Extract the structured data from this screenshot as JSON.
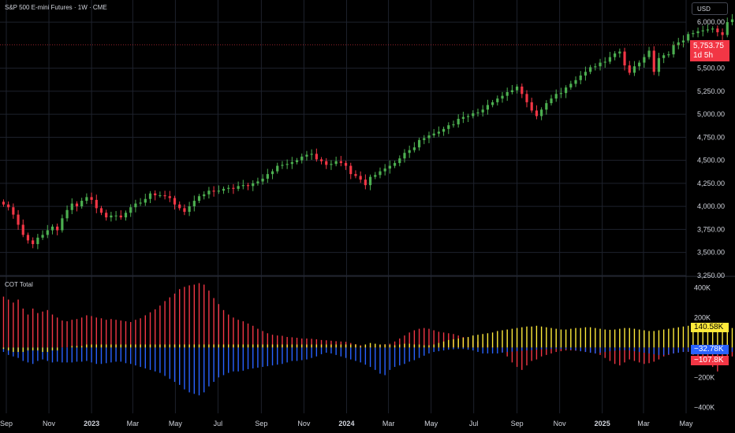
{
  "header": {
    "title": "S&P 500 E-mini Futures · 1W · CME"
  },
  "currency_button": {
    "label": "USD"
  },
  "last_price": {
    "value": "5,753.75",
    "countdown": "1d 5h"
  },
  "indicator": {
    "title": "COT Total",
    "tags": [
      {
        "value": "140.58K",
        "color": "#ffeb3b",
        "text_color": "#000000"
      },
      {
        "value": "−32.78K",
        "color": "#2962ff",
        "text_color": "#ffffff"
      },
      {
        "value": "−107.8K",
        "color": "#f23645",
        "text_color": "#ffffff"
      }
    ]
  },
  "colors": {
    "up": "#4caf50",
    "down": "#f23645",
    "yellow": "#ffeb3b",
    "blue": "#2962ff",
    "red": "#f23645",
    "grid": "#1e222d",
    "text": "#d1d4dc"
  },
  "chart_data": [
    {
      "type": "candlestick",
      "title": "S&P 500 E-mini Futures · 1W · CME",
      "y_axis_ticks": [
        "3,250.00",
        "3,500.00",
        "3,750.00",
        "4,000.00",
        "4,250.00",
        "4,500.00",
        "4,750.00",
        "5,000.00",
        "5,250.00",
        "5,500.00",
        "6,000.00"
      ],
      "ylim": [
        3240,
        6240
      ],
      "x_axis_ticks": [
        "Sep",
        "Nov",
        "2023",
        "Mar",
        "May",
        "Jul",
        "Sep",
        "Nov",
        "2024",
        "Mar",
        "May",
        "Jul",
        "Sep",
        "Nov",
        "2025",
        "Mar",
        "May"
      ],
      "x_range": [
        "2022-09-01",
        "2025-05-01"
      ],
      "start_date": "2022-08-28",
      "step_days": 7,
      "close": [
        4020,
        3990,
        3910,
        3800,
        3690,
        3630,
        3590,
        3660,
        3690,
        3740,
        3780,
        3740,
        3870,
        3960,
        4030,
        4000,
        4060,
        4100,
        4070,
        3980,
        3930,
        3880,
        3900,
        3900,
        3880,
        3930,
        3990,
        4030,
        4040,
        4080,
        4140,
        4120,
        4120,
        4110,
        4090,
        4020,
        3980,
        3940,
        4000,
        4060,
        4110,
        4130,
        4170,
        4160,
        4170,
        4190,
        4200,
        4190,
        4220,
        4230,
        4220,
        4250,
        4270,
        4300,
        4350,
        4380,
        4440,
        4450,
        4460,
        4480,
        4500,
        4540,
        4560,
        4570,
        4510,
        4490,
        4450,
        4460,
        4490,
        4470,
        4440,
        4350,
        4330,
        4290,
        4230,
        4320,
        4340,
        4380,
        4410,
        4440,
        4470,
        4520,
        4580,
        4610,
        4640,
        4720,
        4740,
        4770,
        4790,
        4810,
        4840,
        4880,
        4890,
        4950,
        4970,
        4980,
        5010,
        5020,
        5050,
        5100,
        5130,
        5170,
        5200,
        5240,
        5260,
        5300,
        5220,
        5130,
        5040,
        4980,
        5050,
        5120,
        5170,
        5220,
        5230,
        5290,
        5330,
        5370,
        5420,
        5460,
        5510,
        5520,
        5560,
        5570,
        5620,
        5660,
        5680,
        5530,
        5450,
        5520,
        5560,
        5620,
        5690,
        5460,
        5610,
        5640,
        5650,
        5750,
        5780,
        5800,
        5870,
        5880,
        5900,
        5910,
        5920,
        5930,
        5890,
        5860,
        6000,
        6030,
        6060,
        6080,
        6040,
        6000,
        5990,
        5950,
        5980,
        6070,
        6100,
        6060,
        5960,
        5920,
        6060,
        6100,
        6130,
        6110,
        6020,
        5960,
        5950,
        5830,
        5754
      ],
      "last_price": 5753.75
    },
    {
      "type": "bar",
      "title": "COT Total",
      "y_axis_ticks": [
        "400K",
        "200K",
        "−200K",
        "−400K"
      ],
      "ylim": [
        -440000,
        470000
      ],
      "series": [
        {
          "name": "red",
          "values": [
            340000,
            320000,
            300000,
            320000,
            260000,
            220000,
            260000,
            230000,
            240000,
            250000,
            220000,
            200000,
            180000,
            175000,
            185000,
            190000,
            200000,
            215000,
            210000,
            200000,
            195000,
            185000,
            190000,
            185000,
            180000,
            175000,
            170000,
            185000,
            195000,
            215000,
            235000,
            255000,
            280000,
            310000,
            335000,
            360000,
            390000,
            405000,
            415000,
            420000,
            430000,
            420000,
            380000,
            330000,
            290000,
            250000,
            220000,
            200000,
            185000,
            175000,
            160000,
            145000,
            125000,
            110000,
            95000,
            85000,
            80000,
            78000,
            70000,
            68000,
            65000,
            60000,
            60000,
            58000,
            55000,
            50000,
            48000,
            45000,
            42000,
            40000,
            38000,
            30000,
            22000,
            15000,
            10000,
            12000,
            15000,
            18000,
            22000,
            25000,
            40000,
            60000,
            80000,
            100000,
            115000,
            125000,
            130000,
            125000,
            115000,
            105000,
            100000,
            95000,
            90000,
            80000,
            70000,
            60000,
            50000,
            40000,
            30000,
            20000,
            10000,
            -10000,
            -30000,
            -60000,
            -100000,
            -130000,
            -150000,
            -120000,
            -90000,
            -80000,
            -60000,
            -50000,
            -40000,
            -30000,
            -25000,
            -20000,
            -20000,
            -22000,
            -25000,
            -30000,
            -35000,
            -40000,
            -50000,
            -70000,
            -90000,
            -110000,
            -120000,
            -100000,
            -80000,
            -90000,
            -100000,
            -110000,
            -105000,
            -95000,
            -80000,
            -60000,
            -50000,
            -40000,
            -35000,
            -30000,
            -30000,
            -50000,
            -70000,
            -95000,
            -110000,
            -130000,
            -160000,
            -110000,
            -80000,
            -60000,
            -50000,
            -60000,
            -80000,
            -95000,
            -100000,
            -100000,
            -110000,
            -100000,
            -90000,
            -80000,
            -90000,
            -95000,
            -100000,
            -105000,
            -100000,
            -95000,
            -100000,
            -105000,
            -107800
          ]
        },
        {
          "name": "blue",
          "values": [
            -30000,
            -50000,
            -60000,
            -70000,
            -90000,
            -100000,
            -110000,
            -90000,
            -80000,
            -90000,
            -100000,
            -95000,
            -100000,
            -100000,
            -100000,
            -95000,
            -95000,
            -90000,
            -100000,
            -110000,
            -110000,
            -105000,
            -100000,
            -95000,
            -95000,
            -105000,
            -110000,
            -120000,
            -130000,
            -140000,
            -150000,
            -160000,
            -170000,
            -190000,
            -210000,
            -230000,
            -250000,
            -280000,
            -300000,
            -310000,
            -320000,
            -300000,
            -260000,
            -230000,
            -200000,
            -185000,
            -170000,
            -160000,
            -160000,
            -155000,
            -145000,
            -140000,
            -135000,
            -130000,
            -125000,
            -120000,
            -115000,
            -110000,
            -100000,
            -90000,
            -90000,
            -85000,
            -80000,
            -70000,
            -60000,
            -45000,
            -35000,
            -40000,
            -50000,
            -60000,
            -70000,
            -80000,
            -90000,
            -100000,
            -115000,
            -130000,
            -150000,
            -175000,
            -185000,
            -150000,
            -130000,
            -120000,
            -110000,
            -95000,
            -85000,
            -70000,
            -55000,
            -40000,
            -30000,
            -25000,
            -20000,
            -15000,
            -12000,
            -10000,
            -10000,
            -15000,
            -20000,
            -30000,
            -40000,
            -40000,
            -40000,
            -40000,
            -35000,
            -30000,
            -28000,
            -25000,
            -22000,
            -20000,
            -18000,
            -15000,
            -13000,
            -12000,
            -10000,
            -10000,
            -10000,
            -12000,
            -15000,
            -20000,
            -25000,
            -30000,
            -35000,
            -40000,
            -35000,
            -30000,
            -25000,
            -22000,
            -20000,
            -18000,
            -20000,
            -25000,
            -30000,
            -35000,
            -40000,
            -45000,
            -50000,
            -50000,
            -45000,
            -40000,
            -35000,
            -30000,
            -28000,
            -25000,
            -22000,
            -20000,
            -18000,
            -15000,
            -15000,
            -20000,
            -25000,
            -30000,
            -30000,
            -25000,
            -20000,
            -18000,
            -15000,
            -20000,
            -25000,
            -30000,
            -32000,
            -33000,
            -34000,
            -33000,
            -32000,
            -32780
          ]
        },
        {
          "name": "yellow",
          "values": [
            -10000,
            -20000,
            -30000,
            -30000,
            -30000,
            -20000,
            -20000,
            -20000,
            -30000,
            -30000,
            -20000,
            -20000,
            0,
            0,
            10000,
            10000,
            10000,
            20000,
            20000,
            20000,
            20000,
            20000,
            20000,
            20000,
            20000,
            20000,
            20000,
            20000,
            20000,
            20000,
            20000,
            20000,
            20000,
            20000,
            20000,
            20000,
            20000,
            20000,
            20000,
            20000,
            20000,
            20000,
            20000,
            20000,
            20000,
            20000,
            20000,
            20000,
            20000,
            20000,
            20000,
            20000,
            20000,
            20000,
            20000,
            20000,
            20000,
            20000,
            20000,
            20000,
            20000,
            20000,
            20000,
            20000,
            20000,
            20000,
            20000,
            20000,
            20000,
            20000,
            20000,
            20000,
            20000,
            10000,
            20000,
            30000,
            25000,
            20000,
            20000,
            18000,
            15000,
            20000,
            25000,
            25000,
            20000,
            20000,
            15000,
            15000,
            20000,
            30000,
            40000,
            50000,
            55000,
            60000,
            65000,
            70000,
            80000,
            85000,
            90000,
            95000,
            100000,
            110000,
            115000,
            120000,
            125000,
            130000,
            135000,
            140000,
            140000,
            145000,
            140000,
            135000,
            130000,
            125000,
            120000,
            120000,
            125000,
            130000,
            130000,
            135000,
            135000,
            130000,
            125000,
            120000,
            118000,
            120000,
            125000,
            130000,
            130000,
            125000,
            120000,
            115000,
            110000,
            110000,
            115000,
            120000,
            125000,
            130000,
            135000,
            140000,
            145000,
            150000,
            155000,
            160000,
            165000,
            160000,
            150000,
            140000,
            135000,
            130000,
            135000,
            140000,
            145000,
            150000,
            150000,
            150000,
            150000,
            150000,
            150000,
            150000,
            150000,
            150000,
            145000,
            142000,
            141000,
            140580
          ]
        }
      ]
    }
  ]
}
